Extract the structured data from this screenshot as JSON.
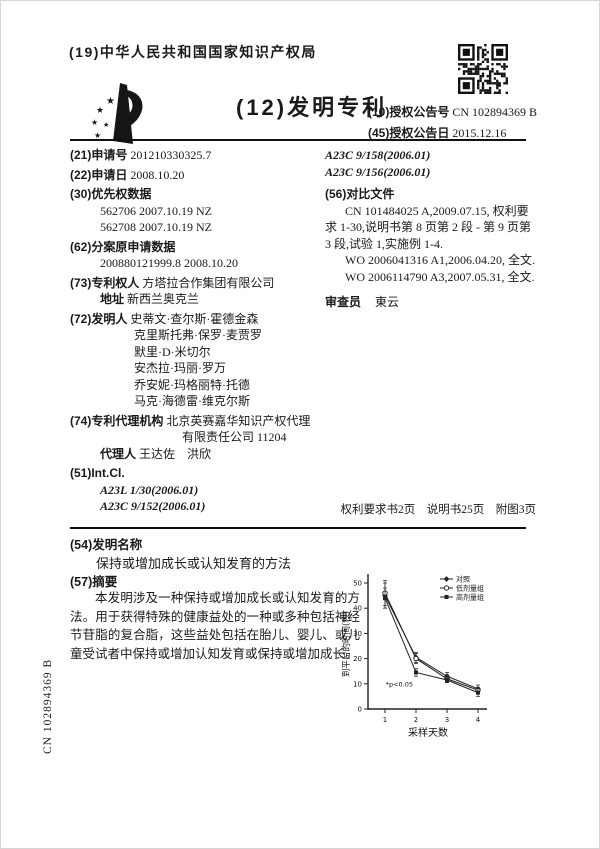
{
  "header": {
    "office": "(19)中华人民共和国国家知识产权局",
    "doc_type": "(12)发明专利",
    "pub_number_label": "(10)授权公告号",
    "pub_number": "CN 102894369 B",
    "pub_date_label": "(45)授权公告日",
    "pub_date": "2015.12.16"
  },
  "biblio": {
    "app_no_label": "(21)申请号",
    "app_no": "201210330325.7",
    "app_date_label": "(22)申请日",
    "app_date": "2008.10.20",
    "priority_label": "(30)优先权数据",
    "priority_items": [
      "562706 2007.10.19 NZ",
      "562708 2007.10.19 NZ"
    ],
    "division_label": "(62)分案原申请数据",
    "division_items": [
      "200880121999.8 2008.10.20"
    ],
    "patentee_label": "(73)专利权人",
    "patentee": "方塔拉合作集团有限公司",
    "address_label": "地址",
    "address": "新西兰奥克兰",
    "inventors_label": "(72)发明人",
    "inventors": [
      "史蒂文·查尔斯·霍德金森",
      "克里斯托弗·保罗·麦贾罗",
      "默里·D·米切尔",
      "安杰拉·玛丽·罗万",
      "乔安妮·玛格丽特·托德",
      "马克·海德雷·维克尔斯"
    ],
    "agency_label": "(74)专利代理机构",
    "agency_line1": "北京英赛嘉华知识产权代理",
    "agency_line2": "有限责任公司 11204",
    "agent_label": "代理人",
    "agents": "王达佐　洪欣",
    "intcl_label": "(51)Int.Cl.",
    "intcl_items": [
      "A23L 1/30(2006.01)",
      "A23C 9/152(2006.01)"
    ],
    "ipc_right": [
      "A23C 9/158(2006.01)",
      "A23C 9/156(2006.01)"
    ],
    "refs_label": "(56)对比文件",
    "refs": [
      "CN 101484025 A,2009.07.15, 权利要求 1-30,说明书第 8 页第 2 段 - 第 9 页第 3 段,试验 1,实施例 1-4.",
      "WO 2006041316 A1,2006.04.20, 全文.",
      "WO 2006114790 A3,2007.05.31, 全文."
    ],
    "examiner_label": "审查员",
    "examiner": "東云",
    "pages_line": "权利要求书2页　说明书25页　附图3页"
  },
  "title_section": {
    "label": "(54)发明名称",
    "title": "保持或增加成长或认知发育的方法"
  },
  "abstract_section": {
    "label": "(57)摘要",
    "text": "本发明涉及一种保持或增加成长或认知发育的方法。用于获得特殊的健康益处的一种或多种包括神经节苷脂的复合脂，这些益处包括在胎儿、婴儿、或儿童受试者中保持或增加认知发育或保持或增加成长。"
  },
  "side_label": "CN 102894369 B",
  "chart_data": {
    "type": "line",
    "title": "",
    "xlabel": "采样天数",
    "ylabel": "到平台的时间(秒)",
    "x": [
      1,
      2,
      3,
      4
    ],
    "xlim": [
      0,
      4.3
    ],
    "ylim": [
      0,
      52
    ],
    "yticks": [
      0,
      10,
      20,
      30,
      40,
      50
    ],
    "grid": false,
    "legend_position": "top-right",
    "series": [
      {
        "name": "对照",
        "marker": "diamond-filled",
        "values": [
          45,
          20.5,
          13,
          8
        ],
        "errors": [
          5,
          2,
          1.5,
          1.5
        ]
      },
      {
        "name": "低剂量组",
        "marker": "circle-open",
        "values": [
          46,
          20,
          12,
          7.5
        ],
        "errors": [
          5,
          2,
          1.5,
          1
        ]
      },
      {
        "name": "高剂量组",
        "marker": "square-filled",
        "values": [
          44,
          14.5,
          11.5,
          6.5
        ],
        "errors": [
          4,
          1.5,
          1,
          1.5
        ]
      }
    ],
    "annotation": {
      "text": "*p<0.05",
      "x": 2,
      "y": 11
    }
  }
}
